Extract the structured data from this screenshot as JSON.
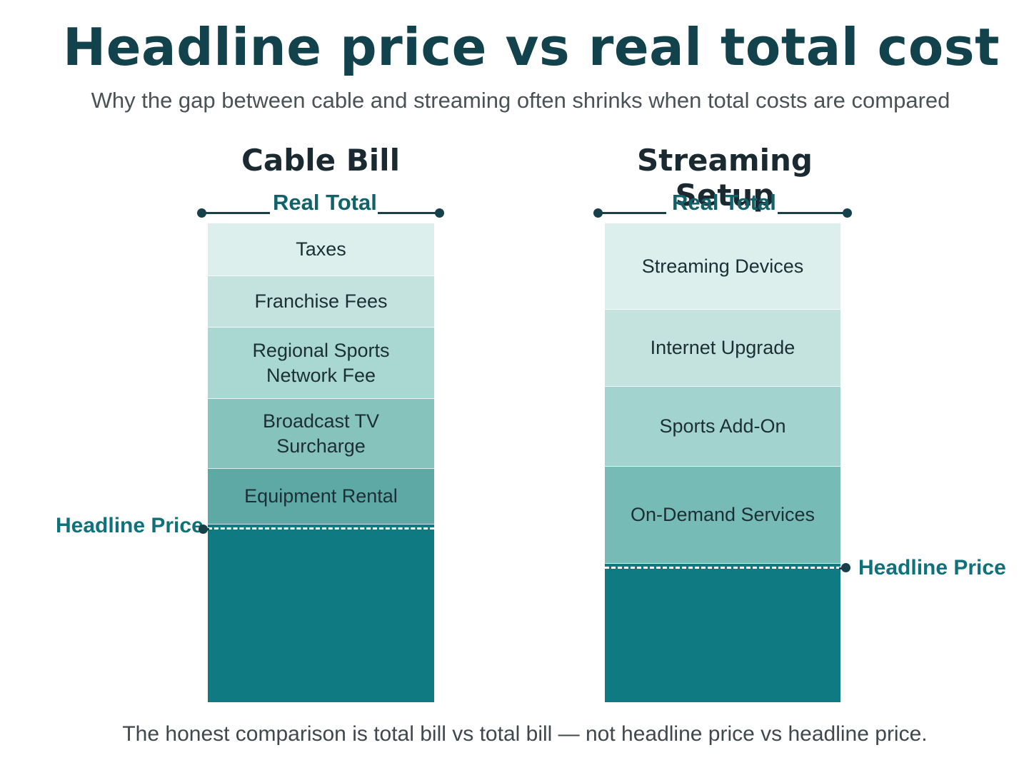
{
  "title": "Headline price vs real total cost",
  "subtitle": "Why the gap between cable and streaming often shrinks when total costs are compared",
  "footer": "The honest comparison is total bill vs total bill — not headline price vs headline price.",
  "colors": {
    "title": "#12424b",
    "headline_base": "#0f7a82",
    "accent_label": "#12626a",
    "bracket": "#17414a"
  },
  "columns": [
    {
      "title": "Cable Bill",
      "real_total_label": "Real Total",
      "headline_price_label": "Headline Price",
      "segments": [
        {
          "label": "Taxes",
          "color": "#dcefec"
        },
        {
          "label": "Franchise Fees",
          "color": "#c4e3df"
        },
        {
          "label": "Regional Sports\nNetwork Fee",
          "color": "#a9d7d2"
        },
        {
          "label": "Broadcast TV\nSurcharge",
          "color": "#86c3bd"
        },
        {
          "label": "Equipment Rental",
          "color": "#5ea9a6"
        }
      ]
    },
    {
      "title": "Streaming Setup",
      "real_total_label": "Real Total",
      "headline_price_label": "Headline Price",
      "segments": [
        {
          "label": "Streaming Devices",
          "color": "#dcefec"
        },
        {
          "label": "Internet Upgrade",
          "color": "#c4e3df"
        },
        {
          "label": "Sports Add-On",
          "color": "#a2d3ce"
        },
        {
          "label": "On-Demand Services",
          "color": "#76bbb6"
        }
      ]
    }
  ]
}
